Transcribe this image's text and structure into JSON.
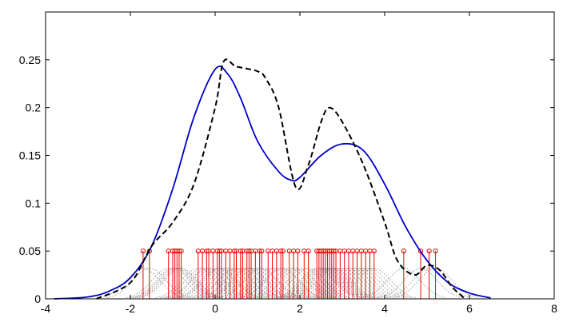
{
  "chart_data": {
    "type": "line",
    "title": "",
    "xlabel": "",
    "ylabel": "",
    "xlim": [
      -4,
      8
    ],
    "ylim": [
      0,
      0.3
    ],
    "grid": false,
    "x_ticks": [
      -4,
      -2,
      0,
      2,
      4,
      6,
      8
    ],
    "x_tick_labels": [
      "-4",
      "-2",
      "0",
      "2",
      "4",
      "6",
      "8"
    ],
    "y_ticks": [
      0,
      0.05,
      0.1,
      0.15,
      0.2,
      0.25
    ],
    "y_tick_labels": [
      "0",
      "0.05",
      "0.1",
      "0.15",
      "0.2",
      "0.25"
    ],
    "series": [
      {
        "style": "solid",
        "color": "#0000cc",
        "x": [
          -3.8,
          -3.0,
          -2.5,
          -2.0,
          -1.5,
          -1.0,
          -0.5,
          0.0,
          0.3,
          0.6,
          1.0,
          1.5,
          1.8,
          2.0,
          2.5,
          3.0,
          3.5,
          4.0,
          4.5,
          5.0,
          5.5,
          6.0,
          6.5
        ],
        "y": [
          0.0,
          0.002,
          0.008,
          0.022,
          0.055,
          0.115,
          0.19,
          0.24,
          0.235,
          0.21,
          0.165,
          0.133,
          0.124,
          0.127,
          0.15,
          0.162,
          0.155,
          0.12,
          0.075,
          0.04,
          0.017,
          0.006,
          0.001
        ]
      },
      {
        "style": "dashed",
        "color": "#000000",
        "x": [
          -2.8,
          -2.0,
          -1.5,
          -1.0,
          -0.5,
          0.0,
          0.2,
          0.5,
          1.0,
          1.2,
          1.5,
          1.9,
          2.2,
          2.5,
          2.7,
          3.0,
          3.5,
          4.0,
          4.3,
          4.7,
          5.0,
          5.3,
          5.6,
          5.9
        ],
        "y": [
          0.0,
          0.017,
          0.055,
          0.08,
          0.12,
          0.2,
          0.248,
          0.243,
          0.238,
          0.23,
          0.2,
          0.117,
          0.14,
          0.185,
          0.2,
          0.185,
          0.14,
          0.08,
          0.04,
          0.025,
          0.035,
          0.03,
          0.012,
          0.0
        ]
      }
    ],
    "samples": {
      "marker_color": "#ee0000",
      "stem_height": 0.05,
      "x": [
        -1.7,
        -1.55,
        -1.1,
        -1.0,
        -0.95,
        -0.9,
        -0.85,
        -0.8,
        -0.4,
        -0.3,
        -0.2,
        -0.15,
        -0.05,
        0.05,
        0.1,
        0.15,
        0.25,
        0.35,
        0.45,
        0.5,
        0.6,
        0.65,
        0.75,
        0.8,
        0.85,
        0.95,
        1.05,
        1.1,
        1.25,
        1.35,
        1.45,
        1.55,
        1.6,
        1.75,
        1.85,
        1.95,
        2.1,
        2.2,
        2.4,
        2.45,
        2.5,
        2.55,
        2.6,
        2.65,
        2.7,
        2.75,
        2.8,
        2.85,
        2.95,
        3.05,
        3.15,
        3.25,
        3.35,
        3.45,
        3.55,
        3.65,
        3.75,
        4.45,
        4.85,
        5.05,
        5.2
      ]
    },
    "kernel": {
      "color": "#888888",
      "peak": 0.032,
      "halfwidth": 1.0
    }
  }
}
